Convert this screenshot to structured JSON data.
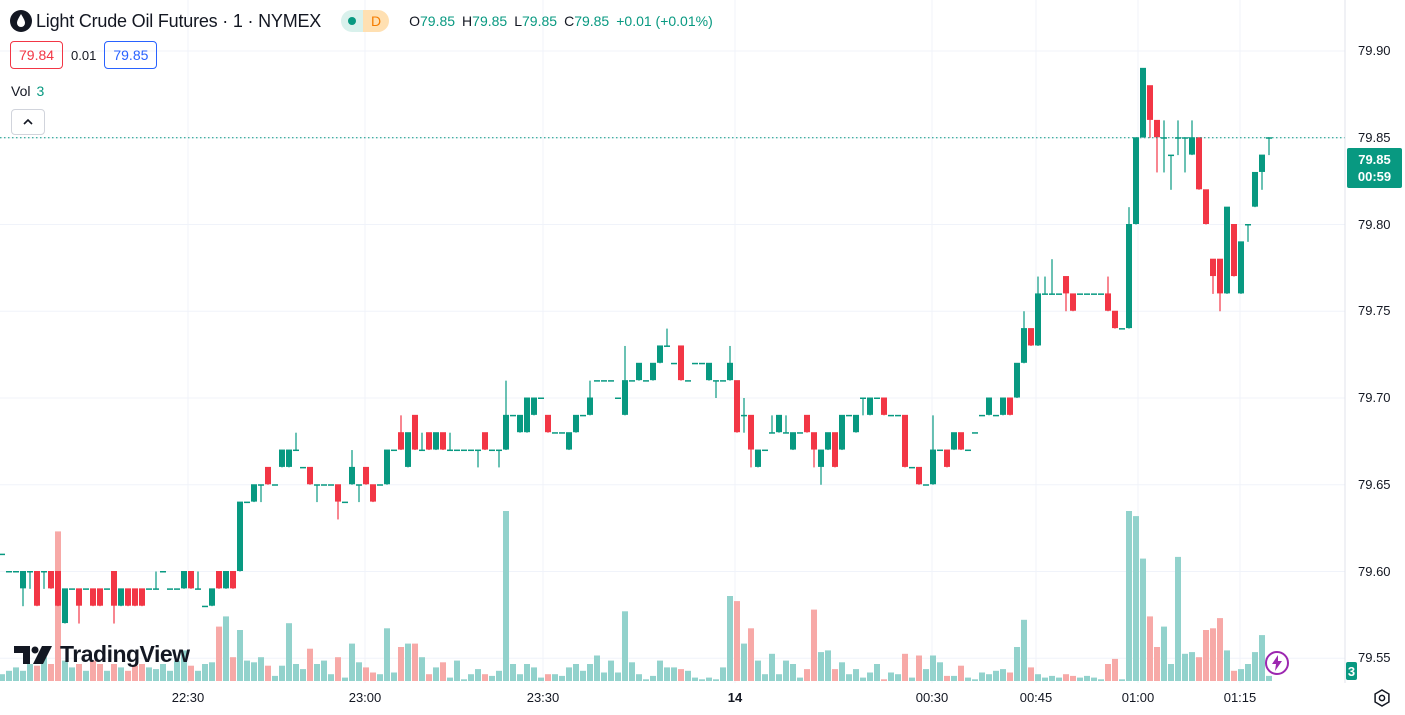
{
  "header": {
    "symbol_icon": "oil-drop-icon",
    "title": "Light Crude Oil Futures · 1 · NYMEX",
    "market_status": "D",
    "ohlc": [
      {
        "k": "O",
        "v": "79.85"
      },
      {
        "k": "H",
        "v": "79.85"
      },
      {
        "k": "L",
        "v": "79.85"
      },
      {
        "k": "C",
        "v": "79.85"
      }
    ],
    "change": "+0.01 (+0.01%)"
  },
  "quotes": {
    "bid": "79.84",
    "spread": "0.01",
    "ask": "79.85"
  },
  "volume_legend": {
    "label": "Vol",
    "value": "3"
  },
  "logo_text": "TradingView",
  "price_tag": {
    "price": "79.85",
    "countdown": "00:59"
  },
  "volume_tag": "3",
  "colors": {
    "up": "#089981",
    "down": "#f23645",
    "vol_up": "#92d2cc",
    "vol_down": "#f7a9a7",
    "bid": "#f23645",
    "ask": "#2962ff"
  },
  "chart_data": {
    "type": "candlestick",
    "interval": "1 minute",
    "y_ticks": [
      "79.90",
      "79.85",
      "79.80",
      "79.75",
      "79.70",
      "79.65",
      "79.60",
      "79.55"
    ],
    "ylim": [
      79.535,
      79.925
    ],
    "x_ticks": [
      "22:30",
      "23:00",
      "23:30",
      "14",
      "00:30",
      "00:45",
      "01:00",
      "01:15"
    ],
    "last_price": 79.85,
    "grid": true,
    "candle_fields": [
      "open",
      "high",
      "low",
      "close",
      "volume"
    ],
    "candles": [
      [
        79.61,
        79.61,
        79.61,
        79.61,
        4
      ],
      [
        79.6,
        79.6,
        79.6,
        79.6,
        6
      ],
      [
        79.6,
        79.6,
        79.6,
        79.6,
        8
      ],
      [
        79.59,
        79.6,
        79.58,
        79.6,
        6
      ],
      [
        79.6,
        79.6,
        79.59,
        79.6,
        10
      ],
      [
        79.6,
        79.6,
        79.58,
        79.58,
        9
      ],
      [
        79.6,
        79.6,
        79.59,
        79.6,
        14
      ],
      [
        79.6,
        79.6,
        79.59,
        79.59,
        10
      ],
      [
        79.6,
        79.6,
        79.58,
        79.58,
        88
      ],
      [
        79.57,
        79.59,
        79.57,
        79.59,
        12
      ],
      [
        79.59,
        79.59,
        79.59,
        79.59,
        8
      ],
      [
        79.59,
        79.59,
        79.57,
        79.58,
        10
      ],
      [
        79.59,
        79.59,
        79.59,
        79.59,
        6
      ],
      [
        79.59,
        79.59,
        79.58,
        79.58,
        12
      ],
      [
        79.59,
        79.59,
        79.58,
        79.58,
        10
      ],
      [
        79.59,
        79.59,
        79.59,
        79.59,
        6
      ],
      [
        79.6,
        79.6,
        79.57,
        79.58,
        10
      ],
      [
        79.58,
        79.59,
        79.58,
        79.59,
        8
      ],
      [
        79.59,
        79.59,
        79.58,
        79.58,
        6
      ],
      [
        79.59,
        79.59,
        79.58,
        79.58,
        9
      ],
      [
        79.59,
        79.59,
        79.58,
        79.58,
        10
      ],
      [
        79.59,
        79.59,
        79.59,
        79.59,
        8
      ],
      [
        79.59,
        79.6,
        79.59,
        79.59,
        7
      ],
      [
        79.6,
        79.6,
        79.6,
        79.6,
        10
      ],
      [
        79.59,
        79.59,
        79.59,
        79.59,
        6
      ],
      [
        79.59,
        79.59,
        79.59,
        79.59,
        12
      ],
      [
        79.59,
        79.6,
        79.59,
        79.6,
        18
      ],
      [
        79.6,
        79.6,
        79.59,
        79.59,
        9
      ],
      [
        79.59,
        79.6,
        79.59,
        79.59,
        6
      ],
      [
        79.58,
        79.58,
        79.58,
        79.58,
        10
      ],
      [
        79.58,
        79.59,
        79.58,
        79.59,
        11
      ],
      [
        79.6,
        79.6,
        79.59,
        79.59,
        32
      ],
      [
        79.59,
        79.6,
        79.59,
        79.6,
        38
      ],
      [
        79.6,
        79.6,
        79.59,
        79.59,
        14
      ],
      [
        79.6,
        79.64,
        79.6,
        79.64,
        30
      ],
      [
        79.64,
        79.64,
        79.64,
        79.64,
        12
      ],
      [
        79.64,
        79.65,
        79.64,
        79.65,
        11
      ],
      [
        79.65,
        79.65,
        79.64,
        79.65,
        14
      ],
      [
        79.66,
        79.66,
        79.65,
        79.65,
        9
      ],
      [
        79.65,
        79.65,
        79.65,
        79.65,
        3
      ],
      [
        79.66,
        79.67,
        79.66,
        79.67,
        9
      ],
      [
        79.66,
        79.67,
        79.66,
        79.67,
        34
      ],
      [
        79.67,
        79.68,
        79.67,
        79.67,
        10
      ],
      [
        79.66,
        79.66,
        79.66,
        79.66,
        7
      ],
      [
        79.66,
        79.66,
        79.65,
        79.65,
        19
      ],
      [
        79.65,
        79.65,
        79.64,
        79.65,
        10
      ],
      [
        79.65,
        79.65,
        79.65,
        79.65,
        12
      ],
      [
        79.65,
        79.65,
        79.65,
        79.65,
        4
      ],
      [
        79.65,
        79.65,
        79.63,
        79.64,
        14
      ],
      [
        79.64,
        79.64,
        79.64,
        79.64,
        2
      ],
      [
        79.65,
        79.67,
        79.65,
        79.66,
        22
      ],
      [
        79.65,
        79.65,
        79.64,
        79.65,
        11
      ],
      [
        79.66,
        79.66,
        79.65,
        79.65,
        8
      ],
      [
        79.65,
        79.65,
        79.64,
        79.64,
        5
      ],
      [
        79.65,
        79.65,
        79.65,
        79.65,
        4
      ],
      [
        79.65,
        79.67,
        79.65,
        79.67,
        31
      ],
      [
        79.67,
        79.67,
        79.67,
        79.67,
        5
      ],
      [
        79.68,
        79.69,
        79.67,
        79.67,
        20
      ],
      [
        79.66,
        79.68,
        79.66,
        79.68,
        22
      ],
      [
        79.69,
        79.69,
        79.67,
        79.67,
        22
      ],
      [
        79.67,
        79.68,
        79.67,
        79.67,
        14
      ],
      [
        79.68,
        79.68,
        79.67,
        79.67,
        4
      ],
      [
        79.67,
        79.68,
        79.67,
        79.68,
        8
      ],
      [
        79.68,
        79.68,
        79.67,
        79.67,
        11
      ],
      [
        79.67,
        79.68,
        79.67,
        79.67,
        2
      ],
      [
        79.67,
        79.67,
        79.67,
        79.67,
        12
      ],
      [
        79.67,
        79.67,
        79.67,
        79.67,
        1
      ],
      [
        79.67,
        79.67,
        79.67,
        79.67,
        4
      ],
      [
        79.67,
        79.67,
        79.66,
        79.67,
        7
      ],
      [
        79.68,
        79.68,
        79.67,
        79.67,
        4
      ],
      [
        79.67,
        79.67,
        79.67,
        79.67,
        3
      ],
      [
        79.67,
        79.67,
        79.66,
        79.67,
        6
      ],
      [
        79.67,
        79.71,
        79.67,
        79.69,
        100
      ],
      [
        79.69,
        79.69,
        79.69,
        79.69,
        10
      ],
      [
        79.68,
        79.69,
        79.68,
        79.69,
        4
      ],
      [
        79.68,
        79.7,
        79.68,
        79.7,
        10
      ],
      [
        79.69,
        79.7,
        79.69,
        79.7,
        8
      ],
      [
        79.7,
        79.7,
        79.7,
        79.7,
        2
      ],
      [
        79.69,
        79.69,
        79.68,
        79.68,
        4
      ],
      [
        79.68,
        79.68,
        79.68,
        79.68,
        4
      ],
      [
        79.68,
        79.68,
        79.68,
        79.68,
        3
      ],
      [
        79.67,
        79.68,
        79.67,
        79.68,
        8
      ],
      [
        79.68,
        79.69,
        79.68,
        79.69,
        10
      ],
      [
        79.69,
        79.69,
        79.69,
        79.69,
        6
      ],
      [
        79.69,
        79.71,
        79.69,
        79.7,
        10
      ],
      [
        79.71,
        79.71,
        79.71,
        79.71,
        15
      ],
      [
        79.71,
        79.71,
        79.71,
        79.71,
        5
      ],
      [
        79.71,
        79.71,
        79.71,
        79.71,
        12
      ],
      [
        79.7,
        79.7,
        79.7,
        79.7,
        5
      ],
      [
        79.69,
        79.73,
        79.69,
        79.71,
        41
      ],
      [
        79.71,
        79.71,
        79.71,
        79.71,
        11
      ],
      [
        79.71,
        79.72,
        79.71,
        79.72,
        4
      ],
      [
        79.71,
        79.71,
        79.71,
        79.71,
        1
      ],
      [
        79.71,
        79.72,
        79.71,
        79.72,
        3
      ],
      [
        79.72,
        79.73,
        79.72,
        79.73,
        12
      ],
      [
        79.73,
        79.74,
        79.73,
        79.73,
        8
      ],
      [
        79.72,
        79.72,
        79.72,
        79.72,
        8
      ],
      [
        79.73,
        79.73,
        79.71,
        79.71,
        7
      ],
      [
        79.71,
        79.71,
        79.71,
        79.71,
        6
      ],
      [
        79.72,
        79.72,
        79.72,
        79.72,
        2
      ],
      [
        79.72,
        79.72,
        79.72,
        79.72,
        1
      ],
      [
        79.71,
        79.72,
        79.71,
        79.72,
        2
      ],
      [
        79.71,
        79.71,
        79.7,
        79.71,
        1
      ],
      [
        79.71,
        79.71,
        79.71,
        79.71,
        8
      ],
      [
        79.71,
        79.73,
        79.71,
        79.72,
        50
      ],
      [
        79.71,
        79.71,
        79.68,
        79.68,
        47
      ],
      [
        79.69,
        79.7,
        79.68,
        79.69,
        22
      ],
      [
        79.69,
        79.69,
        79.66,
        79.67,
        31
      ],
      [
        79.66,
        79.67,
        79.66,
        79.67,
        12
      ],
      [
        79.67,
        79.67,
        79.67,
        79.67,
        4
      ],
      [
        79.68,
        79.69,
        79.68,
        79.68,
        16
      ],
      [
        79.68,
        79.69,
        79.68,
        79.69,
        4
      ],
      [
        79.68,
        79.69,
        79.68,
        79.68,
        12
      ],
      [
        79.67,
        79.68,
        79.67,
        79.68,
        10
      ],
      [
        79.68,
        79.68,
        79.68,
        79.68,
        2
      ],
      [
        79.69,
        79.69,
        79.68,
        79.68,
        7
      ],
      [
        79.68,
        79.68,
        79.66,
        79.67,
        42
      ],
      [
        79.66,
        79.67,
        79.65,
        79.67,
        17
      ],
      [
        79.67,
        79.68,
        79.67,
        79.68,
        18
      ],
      [
        79.68,
        79.68,
        79.66,
        79.66,
        7
      ],
      [
        79.67,
        79.69,
        79.67,
        79.69,
        11
      ],
      [
        79.69,
        79.69,
        79.69,
        79.69,
        4
      ],
      [
        79.68,
        79.69,
        79.68,
        79.69,
        7
      ],
      [
        79.7,
        79.7,
        79.69,
        79.7,
        2
      ],
      [
        79.69,
        79.7,
        79.69,
        79.7,
        5
      ],
      [
        79.7,
        79.7,
        79.7,
        79.7,
        10
      ],
      [
        79.7,
        79.7,
        79.69,
        79.69,
        1
      ],
      [
        79.69,
        79.69,
        79.69,
        79.69,
        5
      ],
      [
        79.69,
        79.69,
        79.69,
        79.69,
        4
      ],
      [
        79.69,
        79.69,
        79.66,
        79.66,
        16
      ],
      [
        79.66,
        79.66,
        79.66,
        79.66,
        2
      ],
      [
        79.66,
        79.66,
        79.65,
        79.65,
        15
      ],
      [
        79.65,
        79.65,
        79.65,
        79.65,
        7
      ],
      [
        79.65,
        79.69,
        79.65,
        79.67,
        15
      ],
      [
        79.67,
        79.67,
        79.67,
        79.67,
        11
      ],
      [
        79.67,
        79.67,
        79.66,
        79.66,
        3
      ],
      [
        79.67,
        79.68,
        79.67,
        79.68,
        3
      ],
      [
        79.68,
        79.68,
        79.67,
        79.67,
        9
      ],
      [
        79.67,
        79.67,
        79.67,
        79.67,
        2
      ],
      [
        79.68,
        79.68,
        79.68,
        79.68,
        1
      ],
      [
        79.69,
        79.69,
        79.69,
        79.69,
        5
      ],
      [
        79.69,
        79.7,
        79.69,
        79.7,
        4
      ],
      [
        79.69,
        79.69,
        79.69,
        79.69,
        6
      ],
      [
        79.69,
        79.7,
        79.69,
        79.7,
        7
      ],
      [
        79.7,
        79.7,
        79.69,
        79.69,
        5
      ],
      [
        79.7,
        79.72,
        79.7,
        79.72,
        20
      ],
      [
        79.72,
        79.75,
        79.72,
        79.74,
        36
      ],
      [
        79.74,
        79.74,
        79.73,
        79.73,
        8
      ],
      [
        79.73,
        79.77,
        79.73,
        79.76,
        4
      ],
      [
        79.76,
        79.77,
        79.76,
        79.76,
        2
      ],
      [
        79.76,
        79.78,
        79.76,
        79.76,
        3
      ],
      [
        79.76,
        79.76,
        79.76,
        79.76,
        2
      ],
      [
        79.77,
        79.77,
        79.75,
        79.76,
        4
      ],
      [
        79.76,
        79.76,
        79.75,
        79.75,
        3
      ],
      [
        79.76,
        79.76,
        79.76,
        79.76,
        2
      ],
      [
        79.76,
        79.76,
        79.76,
        79.76,
        3
      ],
      [
        79.76,
        79.76,
        79.76,
        79.76,
        2
      ],
      [
        79.76,
        79.76,
        79.76,
        79.76,
        1
      ],
      [
        79.76,
        79.77,
        79.75,
        79.75,
        10
      ],
      [
        79.75,
        79.75,
        79.74,
        79.74,
        13
      ],
      [
        79.74,
        79.74,
        79.74,
        79.74,
        1
      ],
      [
        79.74,
        79.81,
        79.74,
        79.8,
        100
      ],
      [
        79.8,
        79.85,
        79.8,
        79.85,
        97
      ],
      [
        79.85,
        79.89,
        79.85,
        79.89,
        72
      ],
      [
        79.88,
        79.88,
        79.85,
        79.86,
        38
      ],
      [
        79.86,
        79.86,
        79.83,
        79.85,
        20
      ],
      [
        79.85,
        79.86,
        79.83,
        79.85,
        32
      ],
      [
        79.84,
        79.84,
        79.82,
        79.84,
        10
      ],
      [
        79.85,
        79.86,
        79.84,
        79.85,
        73
      ],
      [
        79.85,
        79.85,
        79.83,
        79.85,
        16
      ],
      [
        79.84,
        79.86,
        79.84,
        79.85,
        17
      ],
      [
        79.85,
        79.85,
        79.82,
        79.82,
        14
      ],
      [
        79.82,
        79.82,
        79.8,
        79.8,
        30
      ],
      [
        79.78,
        79.78,
        79.76,
        79.77,
        31
      ],
      [
        79.78,
        79.78,
        79.75,
        79.76,
        37
      ],
      [
        79.76,
        79.81,
        79.76,
        79.81,
        18
      ],
      [
        79.8,
        79.8,
        79.77,
        79.77,
        6
      ],
      [
        79.76,
        79.79,
        79.76,
        79.79,
        7
      ],
      [
        79.8,
        79.8,
        79.79,
        79.8,
        10
      ],
      [
        79.81,
        79.83,
        79.81,
        79.83,
        17
      ],
      [
        79.83,
        79.84,
        79.82,
        79.84,
        27
      ],
      [
        79.85,
        79.85,
        79.84,
        79.85,
        3
      ]
    ]
  }
}
